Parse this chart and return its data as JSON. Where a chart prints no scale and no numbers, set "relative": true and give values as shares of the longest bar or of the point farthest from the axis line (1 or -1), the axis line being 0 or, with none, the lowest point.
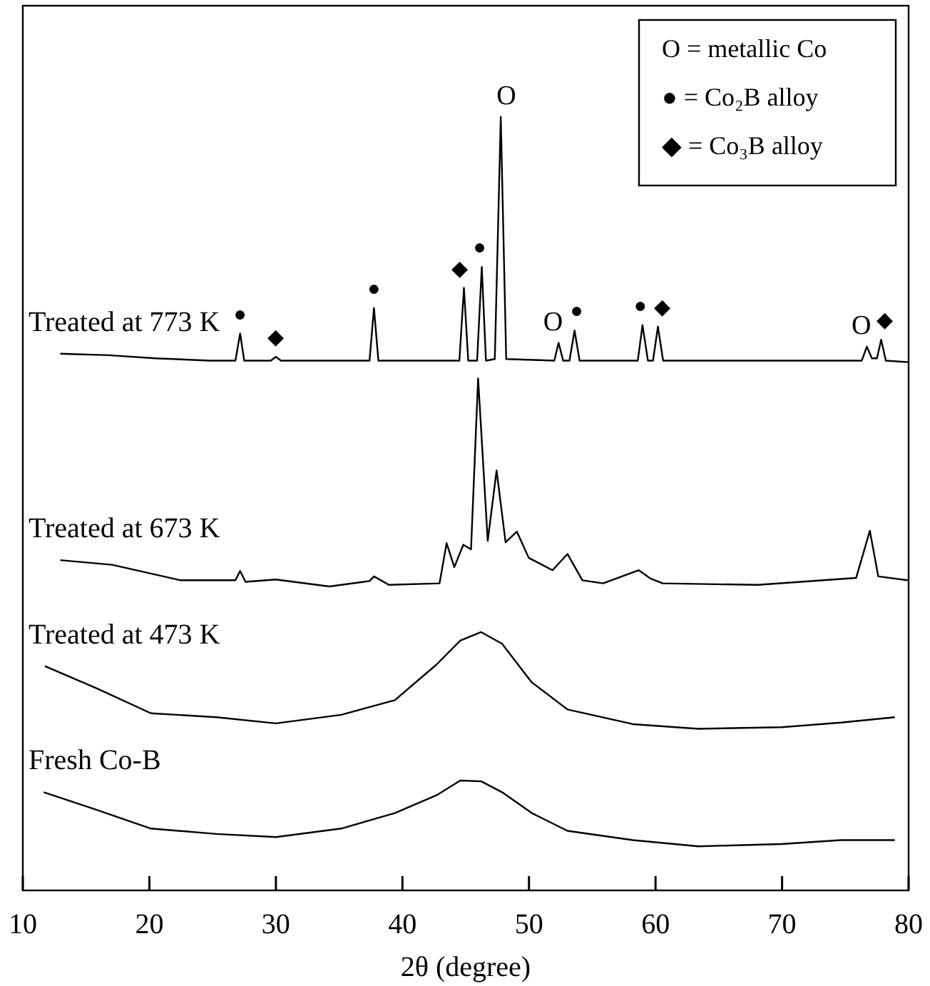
{
  "chart_data": {
    "type": "line",
    "relative": true,
    "xlabel": "2θ (degree)",
    "xlim": [
      10,
      80
    ],
    "xticks": [
      10,
      20,
      30,
      40,
      50,
      60,
      70,
      80
    ],
    "grid": false,
    "line_style": "solid",
    "annotations": [
      "O = metallic Co",
      "● = Co₂B alloy",
      "◆ = Co₃B alloy",
      {
        "text": "●",
        "x": 27.17,
        "y": 0.72
      },
      {
        "text": "◆",
        "x": 29.99,
        "y": 0.69
      },
      {
        "text": "●",
        "x": 37.75,
        "y": 0.753
      },
      {
        "text": "◆",
        "x": 44.86,
        "y": 0.779
      },
      {
        "text": "●",
        "x": 46.27,
        "y": 0.806
      },
      {
        "text": "O",
        "x": 47.77,
        "y": 1
      },
      {
        "text": "O",
        "x": 52.34,
        "y": 0.708
      },
      {
        "text": "●",
        "x": 53.6,
        "y": 0.724
      },
      {
        "text": "●",
        "x": 58.97,
        "y": 0.731
      },
      {
        "text": "◆",
        "x": 60.19,
        "y": 0.729
      },
      {
        "text": "O",
        "x": 76.7,
        "y": 0.703
      },
      {
        "text": "◆",
        "x": 77.83,
        "y": 0.712
      }
    ],
    "series": [
      {
        "name": "Treated at 773 K",
        "color": "#000000",
        "x": [
          12.96,
          16.8,
          20.5,
          24.8,
          26.8,
          27.17,
          27.5,
          29.6,
          29.99,
          30.4,
          37.4,
          37.75,
          38.1,
          43.6,
          44.5,
          44.86,
          45.2,
          45.9,
          46.27,
          46.6,
          47.3,
          47.77,
          48.2,
          52.0,
          52.34,
          52.7,
          53.2,
          53.6,
          54.0,
          58.6,
          58.97,
          59.4,
          59.8,
          60.19,
          60.6,
          76.3,
          76.7,
          77.1,
          77.5,
          77.83,
          78.2,
          79.95
        ],
        "values": [
          0.694,
          0.692,
          0.688,
          0.685,
          0.685,
          0.72,
          0.685,
          0.685,
          0.69,
          0.685,
          0.685,
          0.753,
          0.685,
          0.685,
          0.685,
          0.779,
          0.685,
          0.685,
          0.806,
          0.685,
          0.687,
          1,
          0.687,
          0.685,
          0.708,
          0.685,
          0.685,
          0.724,
          0.685,
          0.685,
          0.731,
          0.685,
          0.685,
          0.729,
          0.685,
          0.685,
          0.703,
          0.688,
          0.688,
          0.712,
          0.685,
          0.683
        ]
      },
      {
        "name": "Treated at 673 K",
        "color": "#000000",
        "x": [
          12.96,
          17.06,
          22.47,
          26.8,
          27.17,
          27.6,
          29.99,
          34.23,
          37.4,
          37.75,
          38.93,
          42.93,
          43.49,
          44.1,
          44.81,
          45.42,
          45.98,
          46.74,
          47.44,
          48.15,
          49.04,
          49.98,
          51.86,
          53.04,
          54.22,
          55.86,
          58.68,
          59.63,
          60.57,
          68.09,
          75.85,
          76.94,
          77.6,
          79.95
        ],
        "values": [
          0.427,
          0.421,
          0.401,
          0.401,
          0.413,
          0.399,
          0.402,
          0.393,
          0.4,
          0.406,
          0.395,
          0.397,
          0.449,
          0.418,
          0.447,
          0.441,
          0.662,
          0.452,
          0.543,
          0.45,
          0.464,
          0.43,
          0.414,
          0.435,
          0.401,
          0.397,
          0.414,
          0.403,
          0.397,
          0.395,
          0.404,
          0.465,
          0.406,
          0.401
        ]
      },
      {
        "name": "Treated at 473 K",
        "color": "#000000",
        "x": [
          11.74,
          15.88,
          20.12,
          25.29,
          30.0,
          35.17,
          39.4,
          42.69,
          44.57,
          46.22,
          47.87,
          50.22,
          53.04,
          58.2,
          63.39,
          69.97,
          74.68,
          78.91
        ],
        "values": [
          0.29,
          0.261,
          0.229,
          0.224,
          0.216,
          0.227,
          0.246,
          0.292,
          0.323,
          0.334,
          0.319,
          0.269,
          0.234,
          0.215,
          0.209,
          0.211,
          0.217,
          0.224
        ]
      },
      {
        "name": "Fresh Co-B",
        "color": "#000000",
        "x": [
          11.65,
          15.88,
          20.12,
          25.29,
          30.0,
          35.17,
          39.4,
          42.69,
          44.57,
          46.22,
          47.87,
          50.22,
          53.04,
          58.2,
          63.39,
          69.97,
          74.68,
          78.91
        ],
        "values": [
          0.127,
          0.104,
          0.08,
          0.073,
          0.069,
          0.08,
          0.1,
          0.123,
          0.142,
          0.141,
          0.127,
          0.1,
          0.077,
          0.065,
          0.057,
          0.06,
          0.065,
          0.065
        ]
      }
    ]
  }
}
